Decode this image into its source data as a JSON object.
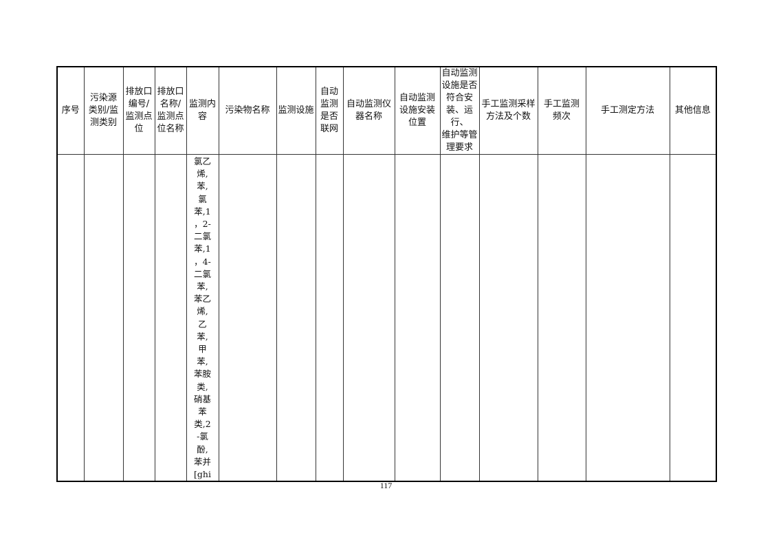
{
  "table": {
    "headers": [
      [
        "序号"
      ],
      [
        "污染源",
        "类别/监",
        "测类别"
      ],
      [
        "排放口",
        "编号/",
        "监测点",
        "位"
      ],
      [
        "排放口",
        "名称/",
        "监测点",
        "位名称"
      ],
      [
        "监测内",
        "容"
      ],
      [
        "污染物名称"
      ],
      [
        "监测设施"
      ],
      [
        "自动",
        "监测",
        "是否",
        "联网"
      ],
      [
        "自动监测仪",
        "器名称"
      ],
      [
        "自动监测",
        "设施安装",
        "位置"
      ],
      [
        "自动监测",
        "设施是否",
        "符合安",
        "装、运行、",
        "维护等管",
        "理要求"
      ],
      [
        "手工监测采样",
        "方法及个数"
      ],
      [
        "手工监测",
        "频次"
      ],
      [
        "手工测定方法"
      ],
      [
        "其他信息"
      ]
    ],
    "row": {
      "monitoring_content_lines": [
        "氯乙",
        "烯,",
        "苯,",
        "氯",
        "苯,1",
        "，2-",
        "二氯",
        "苯,1",
        "，4-",
        "二氯",
        "苯,",
        "苯乙",
        "烯,",
        "乙",
        "苯,",
        "甲",
        "苯,",
        "苯胺",
        "类,",
        "硝基",
        "苯",
        "类,2",
        "-氯",
        "酚,",
        "苯并",
        "[ghi"
      ]
    }
  },
  "page_number": "117"
}
